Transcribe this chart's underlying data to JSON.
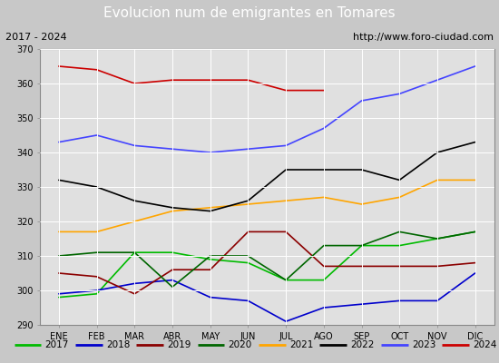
{
  "title": "Evolucion num de emigrantes en Tomares",
  "subtitle_left": "2017 - 2024",
  "subtitle_right": "http://www.foro-ciudad.com",
  "months": [
    "ENE",
    "FEB",
    "MAR",
    "ABR",
    "MAY",
    "JUN",
    "JUL",
    "AGO",
    "SEP",
    "OCT",
    "NOV",
    "DIC"
  ],
  "ylim": [
    290,
    370
  ],
  "yticks": [
    290,
    300,
    310,
    320,
    330,
    340,
    350,
    360,
    370
  ],
  "series": {
    "2017": {
      "color": "#00bb00",
      "data": [
        298,
        299,
        311,
        311,
        309,
        308,
        303,
        303,
        313,
        313,
        315,
        317
      ]
    },
    "2018": {
      "color": "#0000cc",
      "data": [
        299,
        300,
        302,
        303,
        298,
        297,
        291,
        295,
        296,
        297,
        297,
        305
      ]
    },
    "2019": {
      "color": "#8b0000",
      "data": [
        305,
        304,
        299,
        306,
        306,
        317,
        317,
        307,
        307,
        307,
        307,
        308
      ]
    },
    "2020": {
      "color": "#006600",
      "data": [
        310,
        311,
        311,
        301,
        310,
        310,
        303,
        313,
        313,
        317,
        315,
        317
      ]
    },
    "2021": {
      "color": "#ffa500",
      "data": [
        317,
        317,
        320,
        323,
        324,
        325,
        326,
        327,
        325,
        327,
        332,
        332
      ]
    },
    "2022": {
      "color": "#000000",
      "data": [
        332,
        330,
        326,
        324,
        323,
        326,
        335,
        335,
        335,
        332,
        340,
        343
      ]
    },
    "2023": {
      "color": "#4444ff",
      "data": [
        343,
        345,
        342,
        341,
        340,
        341,
        342,
        347,
        355,
        357,
        361,
        365
      ]
    },
    "2024": {
      "color": "#cc0000",
      "data": [
        365,
        364,
        360,
        361,
        361,
        361,
        358,
        358,
        null,
        null,
        null,
        null
      ]
    }
  },
  "fig_width": 5.5,
  "fig_height": 4.0,
  "fig_dpi": 100,
  "title_bg_color": "#5b9bd5",
  "title_color": "#ffffff",
  "title_fontsize": 11,
  "subtitle_bg_color": "#d4d4d4",
  "subtitle_fontsize": 8,
  "plot_bg_color": "#e0e0e0",
  "fig_bg_color": "#c8c8c8",
  "legend_bg_color": "#ffffff",
  "grid_color": "#ffffff",
  "tick_fontsize": 7,
  "line_width": 1.2
}
